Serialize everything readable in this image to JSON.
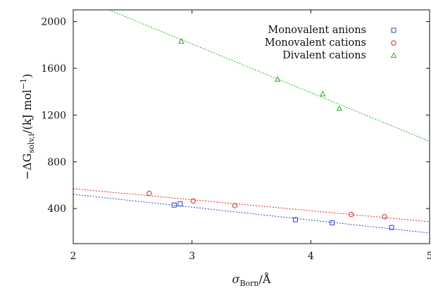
{
  "chart_data": {
    "type": "scatter",
    "title": "",
    "xlabel": {
      "base": "σ",
      "sub": "Born",
      "unit": "Å"
    },
    "ylabel": {
      "prefix": "−ΔG",
      "sub": "solv,i",
      "unit": "(kJ mol",
      "exp": "−1",
      "close": ")"
    },
    "xlim": [
      2,
      5
    ],
    "ylim": [
      100,
      2100
    ],
    "xticks": [
      2,
      3,
      4,
      5
    ],
    "yticks": [
      400,
      800,
      1200,
      1600,
      2000
    ],
    "grid": false,
    "legend_position": "top-right",
    "series": [
      {
        "name": "Monovalent anions",
        "color": "#2a46c4",
        "marker": "square",
        "points": [
          [
            2.85,
            430
          ],
          [
            2.9,
            440
          ],
          [
            3.87,
            305
          ],
          [
            4.18,
            278
          ],
          [
            4.68,
            238
          ]
        ],
        "fit_line": [
          [
            2,
            522
          ],
          [
            5,
            191
          ]
        ]
      },
      {
        "name": "Monovalent cations",
        "color": "#e02020",
        "marker": "circle",
        "points": [
          [
            2.64,
            530
          ],
          [
            3.01,
            465
          ],
          [
            3.36,
            425
          ],
          [
            4.34,
            350
          ],
          [
            4.62,
            330
          ]
        ],
        "fit_line": [
          [
            2,
            570
          ],
          [
            5,
            287
          ]
        ]
      },
      {
        "name": "Divalent cations",
        "color": "#20b020",
        "marker": "triangle",
        "points": [
          [
            2.91,
            1830
          ],
          [
            3.72,
            1505
          ],
          [
            4.1,
            1380
          ],
          [
            4.24,
            1255
          ]
        ],
        "fit_line": [
          [
            2.3,
            2100
          ],
          [
            5,
            975
          ]
        ]
      }
    ]
  }
}
